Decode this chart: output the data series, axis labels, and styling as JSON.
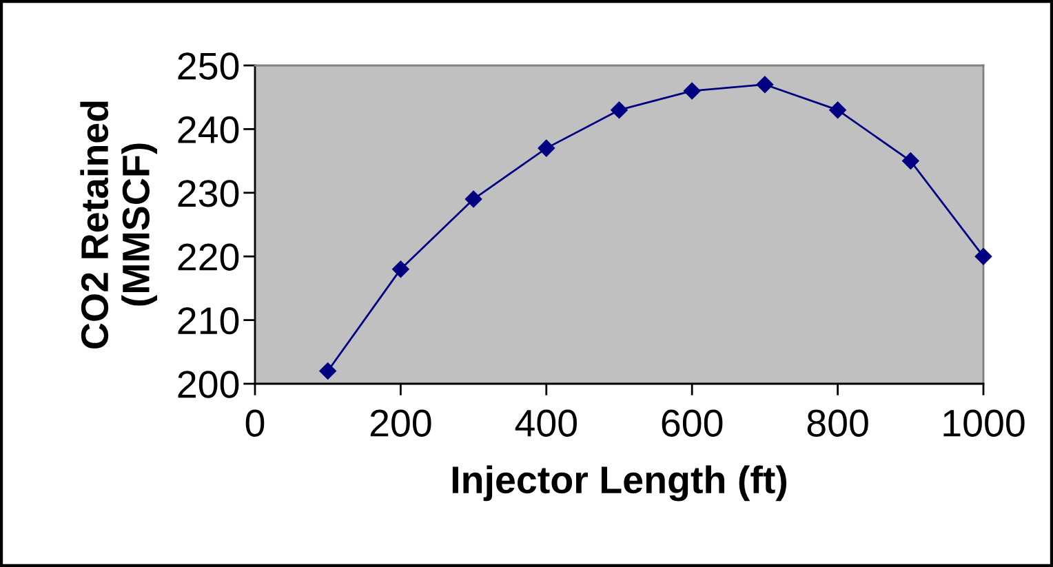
{
  "chart_data": {
    "type": "line",
    "xlabel": "Injector Length (ft)",
    "ylabel": "CO2 Retained\n(MMSCF)",
    "x": [
      100,
      200,
      300,
      400,
      500,
      600,
      700,
      800,
      900,
      1000
    ],
    "series": [
      {
        "color": "#000080",
        "values": [
          202,
          218,
          229,
          237,
          243,
          246,
          247,
          243,
          235,
          220
        ]
      }
    ],
    "xlim": [
      0,
      1000
    ],
    "xticks": [
      0,
      200,
      400,
      600,
      800,
      1000
    ],
    "ylim": [
      200,
      250
    ],
    "yticks": [
      200,
      210,
      220,
      230,
      240,
      250
    ],
    "marker": "diamond",
    "line_style": "solid",
    "grid": false,
    "legend": false
  }
}
